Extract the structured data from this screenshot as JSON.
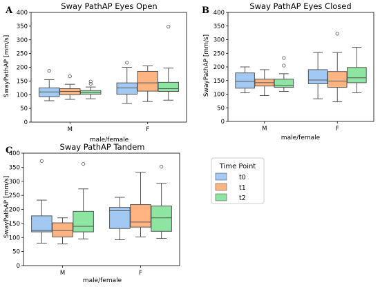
{
  "figure": {
    "legend": {
      "title": "Time Point",
      "entries": [
        {
          "name": "t0",
          "color": "#a1c9f4"
        },
        {
          "name": "t1",
          "color": "#ffb482"
        },
        {
          "name": "t2",
          "color": "#8de5a1"
        }
      ]
    }
  },
  "chart_data": [
    {
      "type": "box",
      "panel_label": "A",
      "title": "Sway PathAP Eyes Open",
      "xlabel": "male/female",
      "ylabel": "SwayPathAP [mm/s]",
      "ylim": [
        0,
        400
      ],
      "yticks": [
        0,
        50,
        100,
        150,
        200,
        250,
        300,
        350,
        400
      ],
      "categories": [
        "M",
        "F"
      ],
      "series": [
        {
          "name": "t0",
          "boxes": [
            {
              "whisker_low": 78,
              "q1": 93,
              "median": 110,
              "q3": 125,
              "whisker_high": 155,
              "outliers": [
                187
              ]
            },
            {
              "whisker_low": 68,
              "q1": 102,
              "median": 125,
              "q3": 143,
              "whisker_high": 200,
              "outliers": [
                217
              ]
            }
          ]
        },
        {
          "name": "t1",
          "boxes": [
            {
              "whisker_low": 83,
              "q1": 100,
              "median": 112,
              "q3": 122,
              "whisker_high": 138,
              "outliers": [
                167
              ]
            },
            {
              "whisker_low": 75,
              "q1": 113,
              "median": 143,
              "q3": 185,
              "whisker_high": 205,
              "outliers": []
            }
          ]
        },
        {
          "name": "t2",
          "boxes": [
            {
              "whisker_low": 85,
              "q1": 102,
              "median": 108,
              "q3": 115,
              "whisker_high": 128,
              "outliers": [
                140,
                148
              ]
            },
            {
              "whisker_low": 80,
              "q1": 112,
              "median": 122,
              "q3": 145,
              "whisker_high": 197,
              "outliers": [
                348
              ]
            }
          ]
        }
      ]
    },
    {
      "type": "box",
      "panel_label": "B",
      "title": "Sway PathAP Eyes Closed",
      "xlabel": "male/female",
      "ylabel": "SwayPathAP [mm/s]",
      "ylim": [
        0,
        400
      ],
      "yticks": [
        0,
        50,
        100,
        150,
        200,
        250,
        300,
        350,
        400
      ],
      "categories": [
        "M",
        "F"
      ],
      "series": [
        {
          "name": "t0",
          "boxes": [
            {
              "whisker_low": 105,
              "q1": 122,
              "median": 147,
              "q3": 178,
              "whisker_high": 200,
              "outliers": []
            },
            {
              "whisker_low": 83,
              "q1": 138,
              "median": 152,
              "q3": 190,
              "whisker_high": 253,
              "outliers": []
            }
          ]
        },
        {
          "name": "t1",
          "boxes": [
            {
              "whisker_low": 95,
              "q1": 130,
              "median": 142,
              "q3": 155,
              "whisker_high": 190,
              "outliers": []
            },
            {
              "whisker_low": 72,
              "q1": 125,
              "median": 148,
              "q3": 183,
              "whisker_high": 253,
              "outliers": [
                322
              ]
            }
          ]
        },
        {
          "name": "t2",
          "boxes": [
            {
              "whisker_low": 110,
              "q1": 125,
              "median": 132,
              "q3": 155,
              "whisker_high": 175,
              "outliers": [
                205,
                233
              ]
            },
            {
              "whisker_low": 105,
              "q1": 142,
              "median": 160,
              "q3": 198,
              "whisker_high": 272,
              "outliers": []
            }
          ]
        }
      ]
    },
    {
      "type": "box",
      "panel_label": "C",
      "title": "Sway PathAP Tandem",
      "xlabel": "male/female",
      "ylabel": "SwayPathAP [mm/s]",
      "ylim": [
        0,
        400
      ],
      "yticks": [
        0,
        50,
        100,
        150,
        200,
        250,
        300,
        350,
        400
      ],
      "categories": [
        "M",
        "F"
      ],
      "series": [
        {
          "name": "t0",
          "boxes": [
            {
              "whisker_low": 80,
              "q1": 120,
              "median": 125,
              "q3": 177,
              "whisker_high": 233,
              "outliers": [
                372
              ]
            },
            {
              "whisker_low": 92,
              "q1": 132,
              "median": 195,
              "q3": 207,
              "whisker_high": 243,
              "outliers": []
            }
          ]
        },
        {
          "name": "t1",
          "boxes": [
            {
              "whisker_low": 77,
              "q1": 102,
              "median": 125,
              "q3": 152,
              "whisker_high": 170,
              "outliers": []
            },
            {
              "whisker_low": 102,
              "q1": 137,
              "median": 155,
              "q3": 217,
              "whisker_high": 332,
              "outliers": []
            }
          ]
        },
        {
          "name": "t2",
          "boxes": [
            {
              "whisker_low": 95,
              "q1": 120,
              "median": 140,
              "q3": 193,
              "whisker_high": 273,
              "outliers": [
                362
              ]
            },
            {
              "whisker_low": 97,
              "q1": 122,
              "median": 170,
              "q3": 212,
              "whisker_high": 293,
              "outliers": [
                352
              ]
            }
          ]
        }
      ]
    }
  ]
}
